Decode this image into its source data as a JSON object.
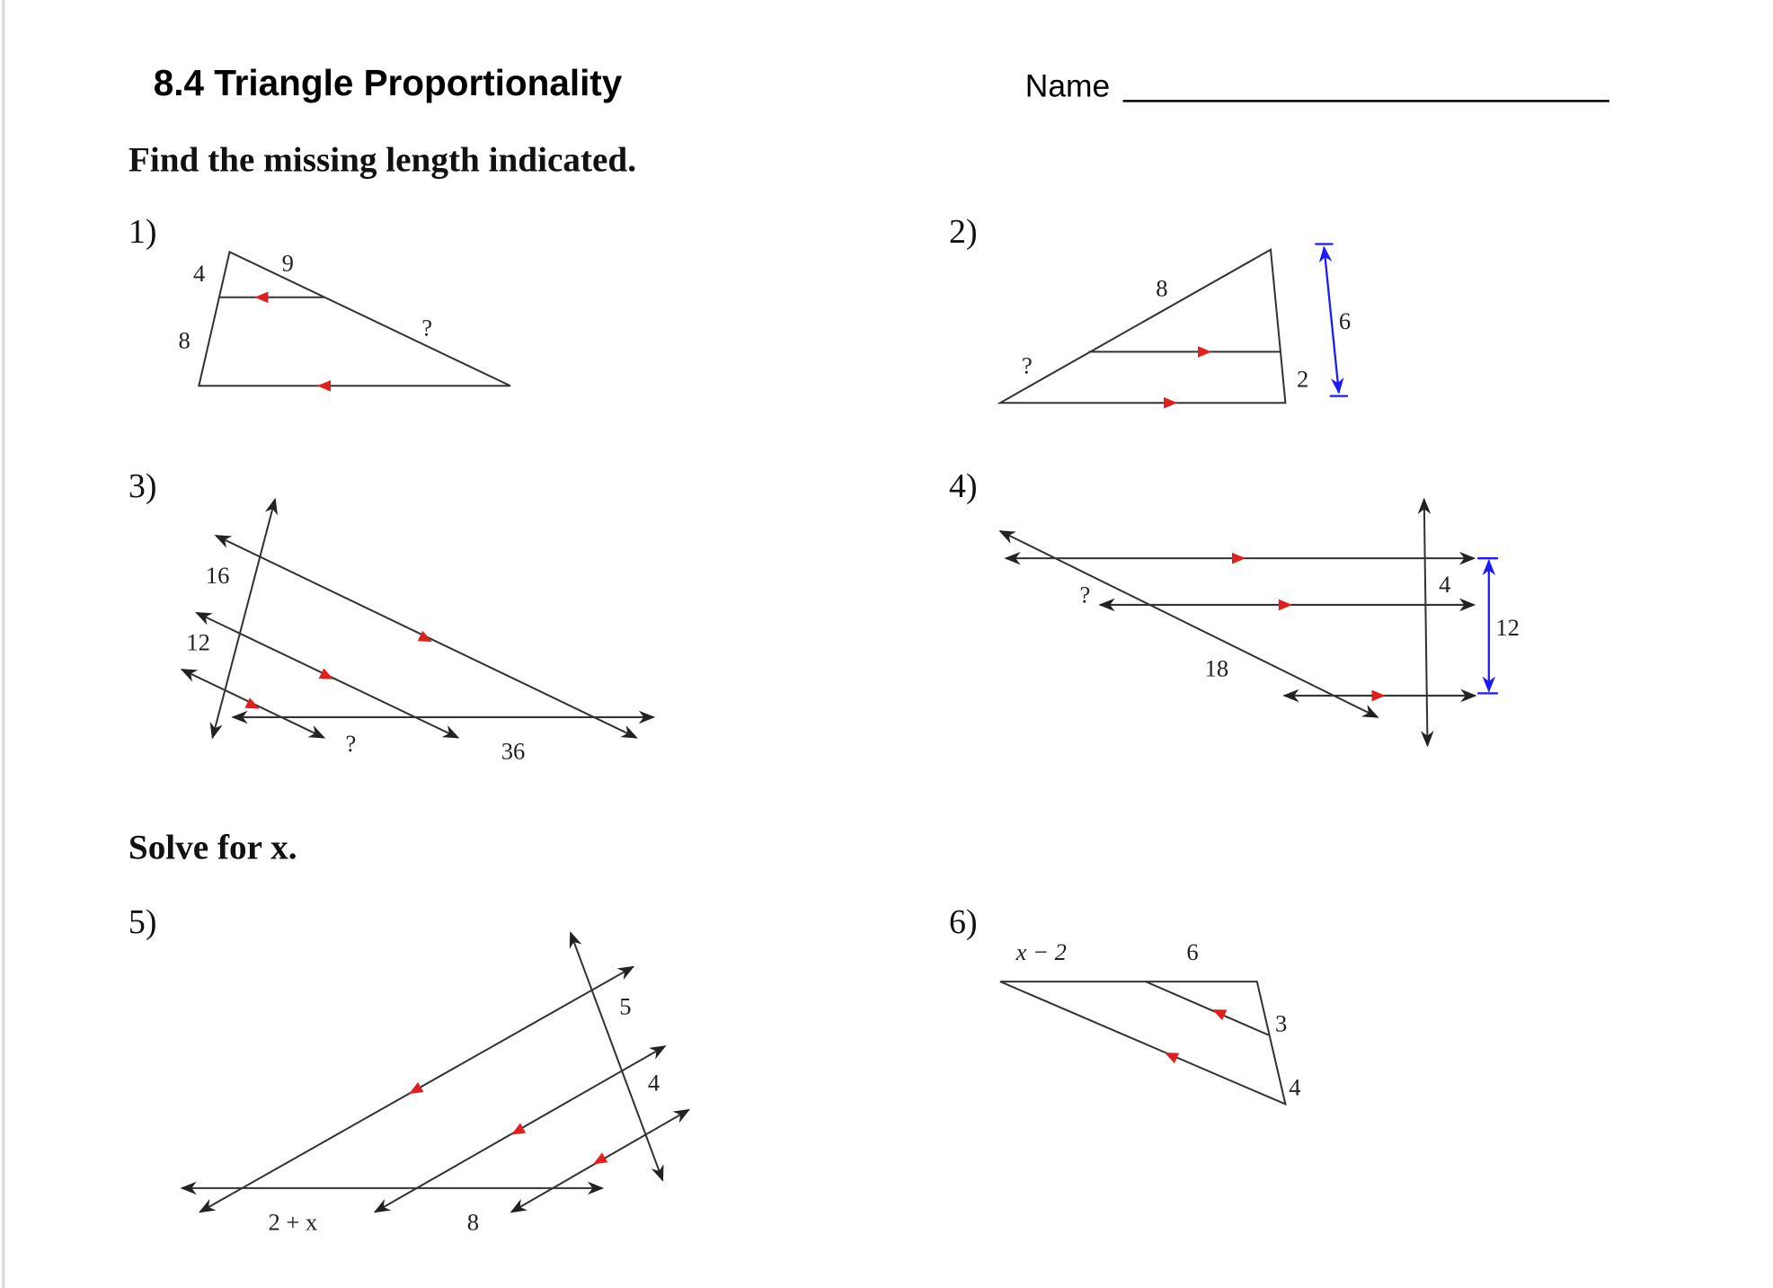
{
  "header": {
    "title": "8.4 Triangle Proportionality",
    "name_label": "Name"
  },
  "sections": [
    {
      "instruction": "Find the missing length indicated."
    },
    {
      "instruction": "Solve for x."
    }
  ],
  "problems": [
    {
      "number": "1)",
      "labels": [
        "4",
        "9",
        "8",
        "?"
      ]
    },
    {
      "number": "2)",
      "labels": [
        "8",
        "?",
        "2",
        "6"
      ]
    },
    {
      "number": "3)",
      "labels": [
        "16",
        "12",
        "?",
        "36"
      ]
    },
    {
      "number": "4)",
      "labels": [
        "?",
        "4",
        "18",
        "12"
      ]
    },
    {
      "number": "5)",
      "labels": [
        "5",
        "4",
        "2 + x",
        "8"
      ]
    },
    {
      "number": "6)",
      "labels": [
        "x − 2",
        "6",
        "3",
        "4"
      ]
    }
  ],
  "colors": {
    "parallel_marks": "#e0201c",
    "dimension": "#1a1aff",
    "lines": "#333333"
  }
}
